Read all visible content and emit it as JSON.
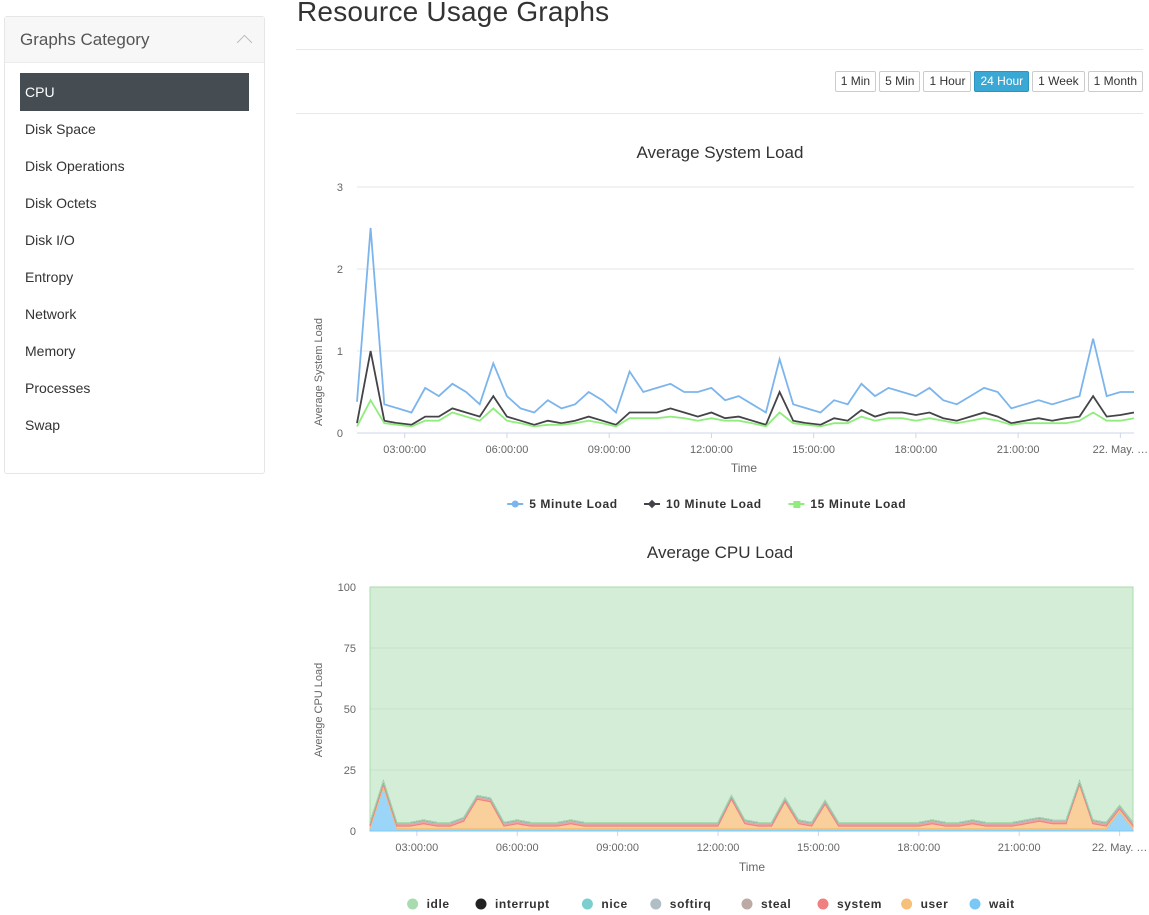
{
  "sidebar": {
    "title": "Graphs Category",
    "items": [
      "CPU",
      "Disk Space",
      "Disk Operations",
      "Disk Octets",
      "Disk I/O",
      "Entropy",
      "Network",
      "Memory",
      "Processes",
      "Swap"
    ],
    "active_index": 0
  },
  "page": {
    "title": "Resource Usage Graphs"
  },
  "time_ranges": {
    "options": [
      "1 Min",
      "5 Min",
      "1 Hour",
      "24 Hour",
      "1 Week",
      "1 Month"
    ],
    "selected": "24 Hour"
  },
  "colors": {
    "accent": "#3aa8d4",
    "sidebar_active": "#454c52",
    "load5": "#7cb5ec",
    "load10": "#434348",
    "load15": "#90ed7d",
    "idle": "#a8dcae",
    "interrupt": "#222222",
    "nice": "#7ccfcf",
    "softirq": "#b0bec5",
    "steal": "#bcaaa4",
    "system": "#f08080",
    "user": "#f7c07a",
    "wait": "#79c8f5"
  },
  "chart_data": [
    {
      "type": "line",
      "title": "Average System Load",
      "xlabel": "Time",
      "ylabel": "Average System Load",
      "ylim": [
        0,
        3
      ],
      "yticks": [
        "0",
        "1",
        "2",
        "3"
      ],
      "xticks": [
        "03:00:00",
        "06:00:00",
        "09:00:00",
        "12:00:00",
        "15:00:00",
        "18:00:00",
        "21:00:00",
        "22. May. …"
      ],
      "x_range_hours": [
        1.6,
        24.4
      ],
      "x": [
        1.6,
        2.0,
        2.4,
        2.8,
        3.2,
        3.6,
        4.0,
        4.4,
        4.8,
        5.2,
        5.6,
        6.0,
        6.4,
        6.8,
        7.2,
        7.6,
        8.0,
        8.4,
        8.8,
        9.2,
        9.6,
        10.0,
        10.4,
        10.8,
        11.2,
        11.6,
        12.0,
        12.4,
        12.8,
        13.2,
        13.6,
        14.0,
        14.4,
        14.8,
        15.2,
        15.6,
        16.0,
        16.4,
        16.8,
        17.2,
        17.6,
        18.0,
        18.4,
        18.8,
        19.2,
        19.6,
        20.0,
        20.4,
        20.8,
        21.2,
        21.6,
        22.0,
        22.4,
        22.8,
        23.2,
        23.6,
        24.0,
        24.4
      ],
      "series": [
        {
          "name": "5 Minute Load",
          "values": [
            0.38,
            2.5,
            0.35,
            0.3,
            0.25,
            0.55,
            0.45,
            0.6,
            0.5,
            0.35,
            0.85,
            0.45,
            0.3,
            0.25,
            0.4,
            0.3,
            0.35,
            0.5,
            0.4,
            0.25,
            0.75,
            0.5,
            0.55,
            0.6,
            0.5,
            0.5,
            0.55,
            0.4,
            0.45,
            0.35,
            0.25,
            0.9,
            0.35,
            0.3,
            0.25,
            0.4,
            0.35,
            0.6,
            0.45,
            0.55,
            0.5,
            0.45,
            0.55,
            0.4,
            0.35,
            0.45,
            0.55,
            0.5,
            0.3,
            0.35,
            0.4,
            0.35,
            0.4,
            0.45,
            1.15,
            0.45,
            0.5,
            0.5
          ]
        },
        {
          "name": "10 Minute Load",
          "values": [
            0.12,
            1.0,
            0.15,
            0.12,
            0.1,
            0.2,
            0.2,
            0.3,
            0.25,
            0.2,
            0.45,
            0.2,
            0.15,
            0.1,
            0.15,
            0.12,
            0.15,
            0.2,
            0.15,
            0.1,
            0.25,
            0.25,
            0.25,
            0.3,
            0.25,
            0.2,
            0.25,
            0.18,
            0.2,
            0.15,
            0.1,
            0.5,
            0.15,
            0.12,
            0.1,
            0.18,
            0.15,
            0.28,
            0.2,
            0.25,
            0.25,
            0.22,
            0.25,
            0.18,
            0.15,
            0.2,
            0.25,
            0.2,
            0.12,
            0.15,
            0.18,
            0.15,
            0.18,
            0.2,
            0.45,
            0.2,
            0.22,
            0.25
          ]
        },
        {
          "name": "15 Minute Load",
          "values": [
            0.08,
            0.4,
            0.12,
            0.1,
            0.08,
            0.15,
            0.15,
            0.25,
            0.2,
            0.15,
            0.3,
            0.15,
            0.12,
            0.08,
            0.1,
            0.1,
            0.12,
            0.15,
            0.12,
            0.08,
            0.18,
            0.18,
            0.18,
            0.2,
            0.18,
            0.15,
            0.18,
            0.15,
            0.15,
            0.12,
            0.08,
            0.25,
            0.12,
            0.1,
            0.08,
            0.12,
            0.12,
            0.2,
            0.15,
            0.18,
            0.18,
            0.15,
            0.18,
            0.15,
            0.12,
            0.15,
            0.18,
            0.15,
            0.1,
            0.12,
            0.12,
            0.12,
            0.12,
            0.15,
            0.25,
            0.15,
            0.15,
            0.18
          ]
        }
      ],
      "legend": "bottom"
    },
    {
      "type": "area",
      "title": "Average CPU Load",
      "xlabel": "Time",
      "ylabel": "Average CPU Load",
      "ylim": [
        0,
        100
      ],
      "yticks": [
        "0",
        "25",
        "50",
        "75",
        "100"
      ],
      "xticks": [
        "03:00:00",
        "06:00:00",
        "09:00:00",
        "12:00:00",
        "15:00:00",
        "18:00:00",
        "21:00:00",
        "22. May. …"
      ],
      "x_range_hours": [
        1.6,
        24.4
      ],
      "x": [
        1.6,
        2.0,
        2.4,
        2.8,
        3.2,
        3.6,
        4.0,
        4.4,
        4.8,
        5.2,
        5.6,
        6.0,
        6.4,
        6.8,
        7.2,
        7.6,
        8.0,
        8.4,
        8.8,
        9.2,
        9.6,
        10.0,
        10.4,
        10.8,
        11.2,
        11.6,
        12.0,
        12.4,
        12.8,
        13.2,
        13.6,
        14.0,
        14.4,
        14.8,
        15.2,
        15.6,
        16.0,
        16.4,
        16.8,
        17.2,
        17.6,
        18.0,
        18.4,
        18.8,
        19.2,
        19.6,
        20.0,
        20.4,
        20.8,
        21.2,
        21.6,
        22.0,
        22.4,
        22.8,
        23.2,
        23.6,
        24.0,
        24.4
      ],
      "series": [
        {
          "name": "idle",
          "values": [
            97,
            82,
            97,
            97,
            96,
            97,
            97,
            95,
            88,
            87,
            97,
            96,
            97,
            97,
            97,
            96,
            97,
            97,
            97,
            97,
            97,
            97,
            97,
            97,
            97,
            97,
            97,
            88,
            96,
            97,
            97,
            89,
            96,
            97,
            90,
            97,
            97,
            97,
            97,
            97,
            97,
            97,
            96,
            97,
            97,
            96,
            97,
            97,
            97,
            96,
            95,
            96,
            96,
            81,
            96,
            97,
            92,
            97
          ]
        },
        {
          "name": "interrupt",
          "values": [
            0,
            0,
            0,
            0,
            0,
            0,
            0,
            0,
            0,
            0,
            0,
            0,
            0,
            0,
            0,
            0,
            0,
            0,
            0,
            0,
            0,
            0,
            0,
            0,
            0,
            0,
            0,
            0,
            0,
            0,
            0,
            0,
            0,
            0,
            0,
            0,
            0,
            0,
            0,
            0,
            0,
            0,
            0,
            0,
            0,
            0,
            0,
            0,
            0,
            0,
            0,
            0,
            0,
            0,
            0,
            0,
            0,
            0
          ]
        },
        {
          "name": "nice",
          "values": [
            0,
            0,
            0,
            0,
            0,
            0,
            0,
            0,
            0,
            0,
            0,
            0,
            0,
            0,
            0,
            0,
            0,
            0,
            0,
            0,
            0,
            0,
            0,
            0,
            0,
            0,
            0,
            0,
            0,
            0,
            0,
            0,
            0,
            0,
            0,
            0,
            0,
            0,
            0,
            0,
            0,
            0,
            0,
            0,
            0,
            0,
            0,
            0,
            0,
            0,
            0,
            0,
            0,
            0,
            0,
            0,
            0,
            0
          ]
        },
        {
          "name": "softirq",
          "values": [
            0.5,
            0.5,
            0.5,
            0.5,
            0.5,
            0.5,
            0.5,
            0.5,
            0.5,
            0.5,
            0.5,
            0.5,
            0.5,
            0.5,
            0.5,
            0.5,
            0.5,
            0.5,
            0.5,
            0.5,
            0.5,
            0.5,
            0.5,
            0.5,
            0.5,
            0.5,
            0.5,
            0.5,
            0.5,
            0.5,
            0.5,
            0.5,
            0.5,
            0.5,
            0.5,
            0.5,
            0.5,
            0.5,
            0.5,
            0.5,
            0.5,
            0.5,
            0.5,
            0.5,
            0.5,
            0.5,
            0.5,
            0.5,
            0.5,
            0.5,
            0.5,
            0.5,
            0.5,
            0.5,
            0.5,
            0.5,
            0.5,
            0.5
          ]
        },
        {
          "name": "steal",
          "values": [
            0,
            0,
            0,
            0,
            0,
            0,
            0,
            0,
            0,
            0,
            0,
            0,
            0,
            0,
            0,
            0,
            0,
            0,
            0,
            0,
            0,
            0,
            0,
            0,
            0,
            0,
            0,
            0,
            0,
            0,
            0,
            0,
            0,
            0,
            0,
            0,
            0,
            0,
            0,
            0,
            0,
            0,
            0,
            0,
            0,
            0,
            0,
            0,
            0,
            0,
            0,
            0,
            0,
            0,
            0,
            0,
            0,
            0
          ]
        },
        {
          "name": "system",
          "values": [
            1,
            1,
            1,
            1,
            1,
            1,
            1,
            1,
            1,
            1,
            1,
            1,
            1,
            1,
            1,
            1,
            1,
            1,
            1,
            1,
            1,
            1,
            1,
            1,
            1,
            1,
            1,
            1,
            1,
            1,
            1,
            1,
            1,
            1,
            1,
            1,
            1,
            1,
            1,
            1,
            1,
            1,
            1,
            1,
            1,
            1,
            1,
            1,
            1,
            1,
            1,
            1,
            1,
            1,
            1,
            1,
            1,
            1
          ]
        },
        {
          "name": "user",
          "values": [
            1,
            1,
            1,
            1,
            2,
            1,
            1,
            3,
            12,
            11,
            1,
            2,
            1,
            1,
            1,
            2,
            1,
            1,
            1,
            1,
            1,
            1,
            1,
            1,
            1,
            1,
            1,
            12,
            2,
            1,
            1,
            11,
            2,
            1,
            10,
            1,
            1,
            1,
            1,
            1,
            1,
            1,
            2,
            1,
            1,
            2,
            1,
            1,
            1,
            2,
            3,
            2,
            2,
            18,
            2,
            1,
            1,
            1
          ]
        },
        {
          "name": "wait",
          "values": [
            1,
            18,
            1,
            1,
            1,
            1,
            1,
            1,
            1,
            1,
            1,
            1,
            1,
            1,
            1,
            1,
            1,
            1,
            1,
            1,
            1,
            1,
            1,
            1,
            1,
            1,
            1,
            1,
            1,
            1,
            1,
            1,
            1,
            1,
            1,
            1,
            1,
            1,
            1,
            1,
            1,
            1,
            1,
            1,
            1,
            1,
            1,
            1,
            1,
            1,
            1,
            1,
            1,
            1,
            1,
            1,
            8,
            1
          ]
        }
      ],
      "legend": "bottom"
    }
  ]
}
